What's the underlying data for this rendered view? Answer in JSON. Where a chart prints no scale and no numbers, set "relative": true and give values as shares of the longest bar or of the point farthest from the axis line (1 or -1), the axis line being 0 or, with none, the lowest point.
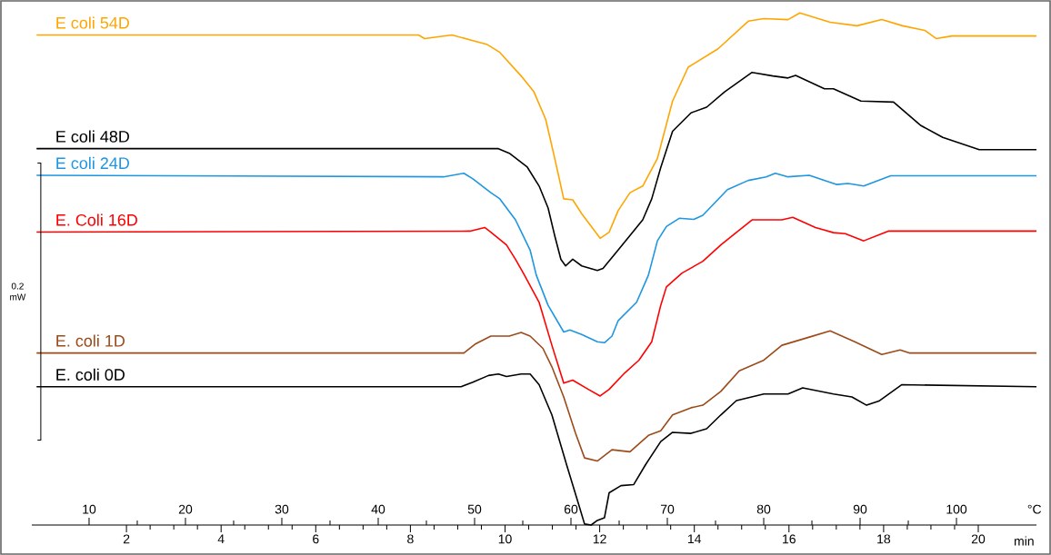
{
  "chart_data": {
    "type": "line",
    "relative": true,
    "xlabel": "min",
    "x2label": "°C",
    "xlim": [
      0,
      21.23
    ],
    "xticks": [
      2,
      4,
      6,
      8,
      10,
      12,
      14,
      16,
      18,
      20
    ],
    "x2lim": [
      4.06,
      108.3
    ],
    "x2ticks": [
      10,
      20,
      30,
      40,
      50,
      60,
      70,
      80,
      90,
      100
    ],
    "annotations": [
      "0.2 mW"
    ],
    "series": [
      {
        "name": "E coli 54D",
        "color": "#ffa500",
        "x": [
          0.1,
          8.17,
          8.3,
          8.88,
          9.32,
          9.61,
          9.89,
          10.34,
          10.61,
          10.86,
          11.05,
          11.24,
          11.43,
          11.62,
          12.01,
          12.2,
          12.39,
          12.64,
          12.91,
          13.22,
          13.54,
          13.87,
          14.5,
          15.14,
          15.47,
          15.98,
          16.23,
          16.87,
          17.44,
          17.96,
          18.4,
          18.87,
          19.11,
          19.44,
          21.23
        ],
        "values": [
          0.957,
          0.957,
          0.95,
          0.957,
          0.946,
          0.939,
          0.923,
          0.877,
          0.846,
          0.792,
          0.716,
          0.637,
          0.635,
          0.608,
          0.56,
          0.572,
          0.614,
          0.649,
          0.662,
          0.716,
          0.828,
          0.894,
          0.93,
          0.984,
          0.989,
          0.987,
          1.0,
          0.982,
          0.975,
          0.987,
          0.975,
          0.966,
          0.95,
          0.955,
          0.955
        ]
      },
      {
        "name": "E coli 48D",
        "color": "#000000",
        "x": [
          0.1,
          9.86,
          10.09,
          10.47,
          10.72,
          10.91,
          11.05,
          11.18,
          11.28,
          11.43,
          11.62,
          11.95,
          12.07,
          12.39,
          12.91,
          13.1,
          13.29,
          13.54,
          13.93,
          14.26,
          14.64,
          15.22,
          15.66,
          15.98,
          16.14,
          16.75,
          16.94,
          17.52,
          18.21,
          18.79,
          19.25,
          20.02,
          21.23
        ],
        "values": [
          0.735,
          0.735,
          0.726,
          0.699,
          0.662,
          0.619,
          0.565,
          0.519,
          0.506,
          0.519,
          0.506,
          0.497,
          0.501,
          0.537,
          0.596,
          0.637,
          0.698,
          0.769,
          0.805,
          0.816,
          0.846,
          0.884,
          0.877,
          0.873,
          0.878,
          0.852,
          0.852,
          0.828,
          0.826,
          0.78,
          0.757,
          0.733,
          0.733
        ]
      },
      {
        "name": "E coli 24D",
        "color": "#1e96e0",
        "x": [
          0.1,
          8.7,
          9.13,
          9.32,
          9.7,
          9.89,
          10.22,
          10.53,
          10.66,
          10.91,
          11.24,
          11.37,
          11.62,
          11.95,
          12.1,
          12.26,
          12.39,
          12.78,
          13.03,
          13.22,
          13.41,
          13.68,
          13.99,
          14.18,
          14.7,
          15.14,
          15.52,
          15.71,
          15.98,
          16.43,
          17.0,
          17.25,
          17.58,
          18.15,
          21.23
        ],
        "values": [
          0.683,
          0.68,
          0.687,
          0.676,
          0.649,
          0.637,
          0.596,
          0.537,
          0.488,
          0.429,
          0.377,
          0.381,
          0.372,
          0.358,
          0.356,
          0.369,
          0.399,
          0.435,
          0.488,
          0.555,
          0.583,
          0.599,
          0.597,
          0.605,
          0.655,
          0.673,
          0.68,
          0.687,
          0.68,
          0.683,
          0.665,
          0.667,
          0.662,
          0.682,
          0.682
        ]
      },
      {
        "name": "E. Coli 16D",
        "color": "#ff0000",
        "x": [
          0.1,
          9.26,
          9.57,
          9.7,
          10.03,
          10.22,
          10.41,
          10.72,
          10.99,
          11.24,
          11.43,
          11.76,
          12.01,
          12.2,
          12.53,
          12.83,
          13.1,
          13.29,
          13.41,
          13.74,
          14.18,
          14.56,
          15.22,
          15.85,
          16.08,
          16.56,
          16.94,
          17.19,
          17.58,
          18.1,
          21.23
        ],
        "values": [
          0.572,
          0.574,
          0.581,
          0.572,
          0.547,
          0.519,
          0.488,
          0.435,
          0.351,
          0.277,
          0.283,
          0.265,
          0.252,
          0.265,
          0.297,
          0.322,
          0.358,
          0.429,
          0.465,
          0.492,
          0.515,
          0.547,
          0.596,
          0.596,
          0.601,
          0.581,
          0.571,
          0.569,
          0.555,
          0.574,
          0.574
        ]
      },
      {
        "name": "E. coli 1D",
        "color": "#9c4a1a",
        "x": [
          0.1,
          9.13,
          9.38,
          9.7,
          10.09,
          10.34,
          10.53,
          10.8,
          10.99,
          11.24,
          11.49,
          11.68,
          11.95,
          12.26,
          12.64,
          13.03,
          13.29,
          13.54,
          13.93,
          14.18,
          14.56,
          14.95,
          15.47,
          15.85,
          16.43,
          16.87,
          17.39,
          17.96,
          18.35,
          18.54,
          21.23
        ],
        "values": [
          0.336,
          0.336,
          0.354,
          0.369,
          0.369,
          0.376,
          0.369,
          0.345,
          0.309,
          0.25,
          0.179,
          0.131,
          0.125,
          0.147,
          0.143,
          0.175,
          0.184,
          0.215,
          0.229,
          0.234,
          0.261,
          0.301,
          0.322,
          0.351,
          0.367,
          0.379,
          0.358,
          0.333,
          0.342,
          0.336,
          0.336
        ]
      },
      {
        "name": "E. coli 0D",
        "color": "#000000",
        "x": [
          0.1,
          9.07,
          9.32,
          9.65,
          9.86,
          10.03,
          10.34,
          10.53,
          10.72,
          10.99,
          11.3,
          11.57,
          11.68,
          11.82,
          11.95,
          12.1,
          12.2,
          12.45,
          12.72,
          12.97,
          13.29,
          13.54,
          13.93,
          14.26,
          14.56,
          14.89,
          15.47,
          15.98,
          16.29,
          16.94,
          17.33,
          17.64,
          17.9,
          18.38,
          21.23
        ],
        "values": [
          0.27,
          0.27,
          0.279,
          0.292,
          0.295,
          0.29,
          0.295,
          0.295,
          0.274,
          0.215,
          0.118,
          0.036,
          0.002,
          0.0,
          0.009,
          0.014,
          0.063,
          0.077,
          0.079,
          0.118,
          0.163,
          0.181,
          0.179,
          0.188,
          0.215,
          0.243,
          0.256,
          0.256,
          0.268,
          0.256,
          0.25,
          0.234,
          0.242,
          0.274,
          0.27
        ]
      }
    ]
  }
}
